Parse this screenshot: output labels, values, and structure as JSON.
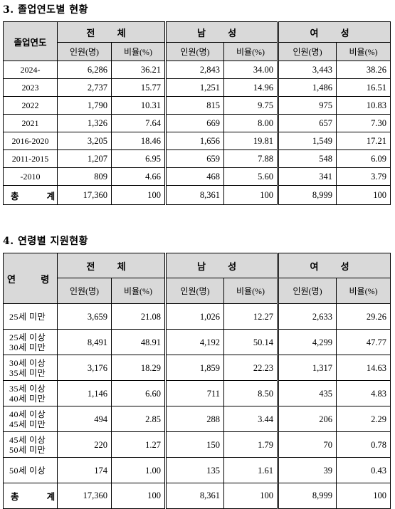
{
  "section1": {
    "title": "3. 졸업연도별 현황",
    "row_header": "졸업연도",
    "groups": [
      "전 체",
      "남 성",
      "여 성"
    ],
    "subheaders": [
      "인원(명)",
      "비율(%)",
      "인원(명)",
      "비율(%)",
      "인원(명)",
      "비율(%)"
    ],
    "rows": [
      {
        "label": "2024-",
        "values": [
          "6,286",
          "36.21",
          "2,843",
          "34.00",
          "3,443",
          "38.26"
        ]
      },
      {
        "label": "2023",
        "values": [
          "2,737",
          "15.77",
          "1,251",
          "14.96",
          "1,486",
          "16.51"
        ]
      },
      {
        "label": "2022",
        "values": [
          "1,790",
          "10.31",
          "815",
          "9.75",
          "975",
          "10.83"
        ]
      },
      {
        "label": "2021",
        "values": [
          "1,326",
          "7.64",
          "669",
          "8.00",
          "657",
          "7.30"
        ]
      },
      {
        "label": "2016-2020",
        "values": [
          "3,205",
          "18.46",
          "1,656",
          "19.81",
          "1,549",
          "17.21"
        ]
      },
      {
        "label": "2011-2015",
        "values": [
          "1,207",
          "6.95",
          "659",
          "7.88",
          "548",
          "6.09"
        ]
      },
      {
        "label": "-2010",
        "values": [
          "809",
          "4.66",
          "468",
          "5.60",
          "341",
          "3.79"
        ]
      }
    ],
    "total": {
      "label": "총 계",
      "values": [
        "17,360",
        "100",
        "8,361",
        "100",
        "8,999",
        "100"
      ]
    }
  },
  "section2": {
    "title": "4. 연령별 지원현황",
    "row_header": "연 령",
    "groups": [
      "전 체",
      "남 성",
      "여 성"
    ],
    "subheaders": [
      "인원(명)",
      "비율(%)",
      "인원(명)",
      "비율(%)",
      "인원(명)",
      "비율(%)"
    ],
    "rows": [
      {
        "label_lines": [
          "25세 미만"
        ],
        "values": [
          "3,659",
          "21.08",
          "1,026",
          "12.27",
          "2,633",
          "29.26"
        ]
      },
      {
        "label_lines": [
          "25세 이상",
          "30세 미만"
        ],
        "values": [
          "8,491",
          "48.91",
          "4,192",
          "50.14",
          "4,299",
          "47.77"
        ]
      },
      {
        "label_lines": [
          "30세 이상",
          "35세 미만"
        ],
        "values": [
          "3,176",
          "18.29",
          "1,859",
          "22.23",
          "1,317",
          "14.63"
        ]
      },
      {
        "label_lines": [
          "35세 이상",
          "40세 미만"
        ],
        "values": [
          "1,146",
          "6.60",
          "711",
          "8.50",
          "435",
          "4.83"
        ]
      },
      {
        "label_lines": [
          "40세 이상",
          "45세 미만"
        ],
        "values": [
          "494",
          "2.85",
          "288",
          "3.44",
          "206",
          "2.29"
        ]
      },
      {
        "label_lines": [
          "45세 이상",
          "50세 미만"
        ],
        "values": [
          "220",
          "1.27",
          "150",
          "1.79",
          "70",
          "0.78"
        ]
      },
      {
        "label_lines": [
          "50세 이상"
        ],
        "values": [
          "174",
          "1.00",
          "135",
          "1.61",
          "39",
          "0.43"
        ]
      }
    ],
    "total": {
      "label": "총 계",
      "values": [
        "17,360",
        "100",
        "8,361",
        "100",
        "8,999",
        "100"
      ]
    }
  }
}
